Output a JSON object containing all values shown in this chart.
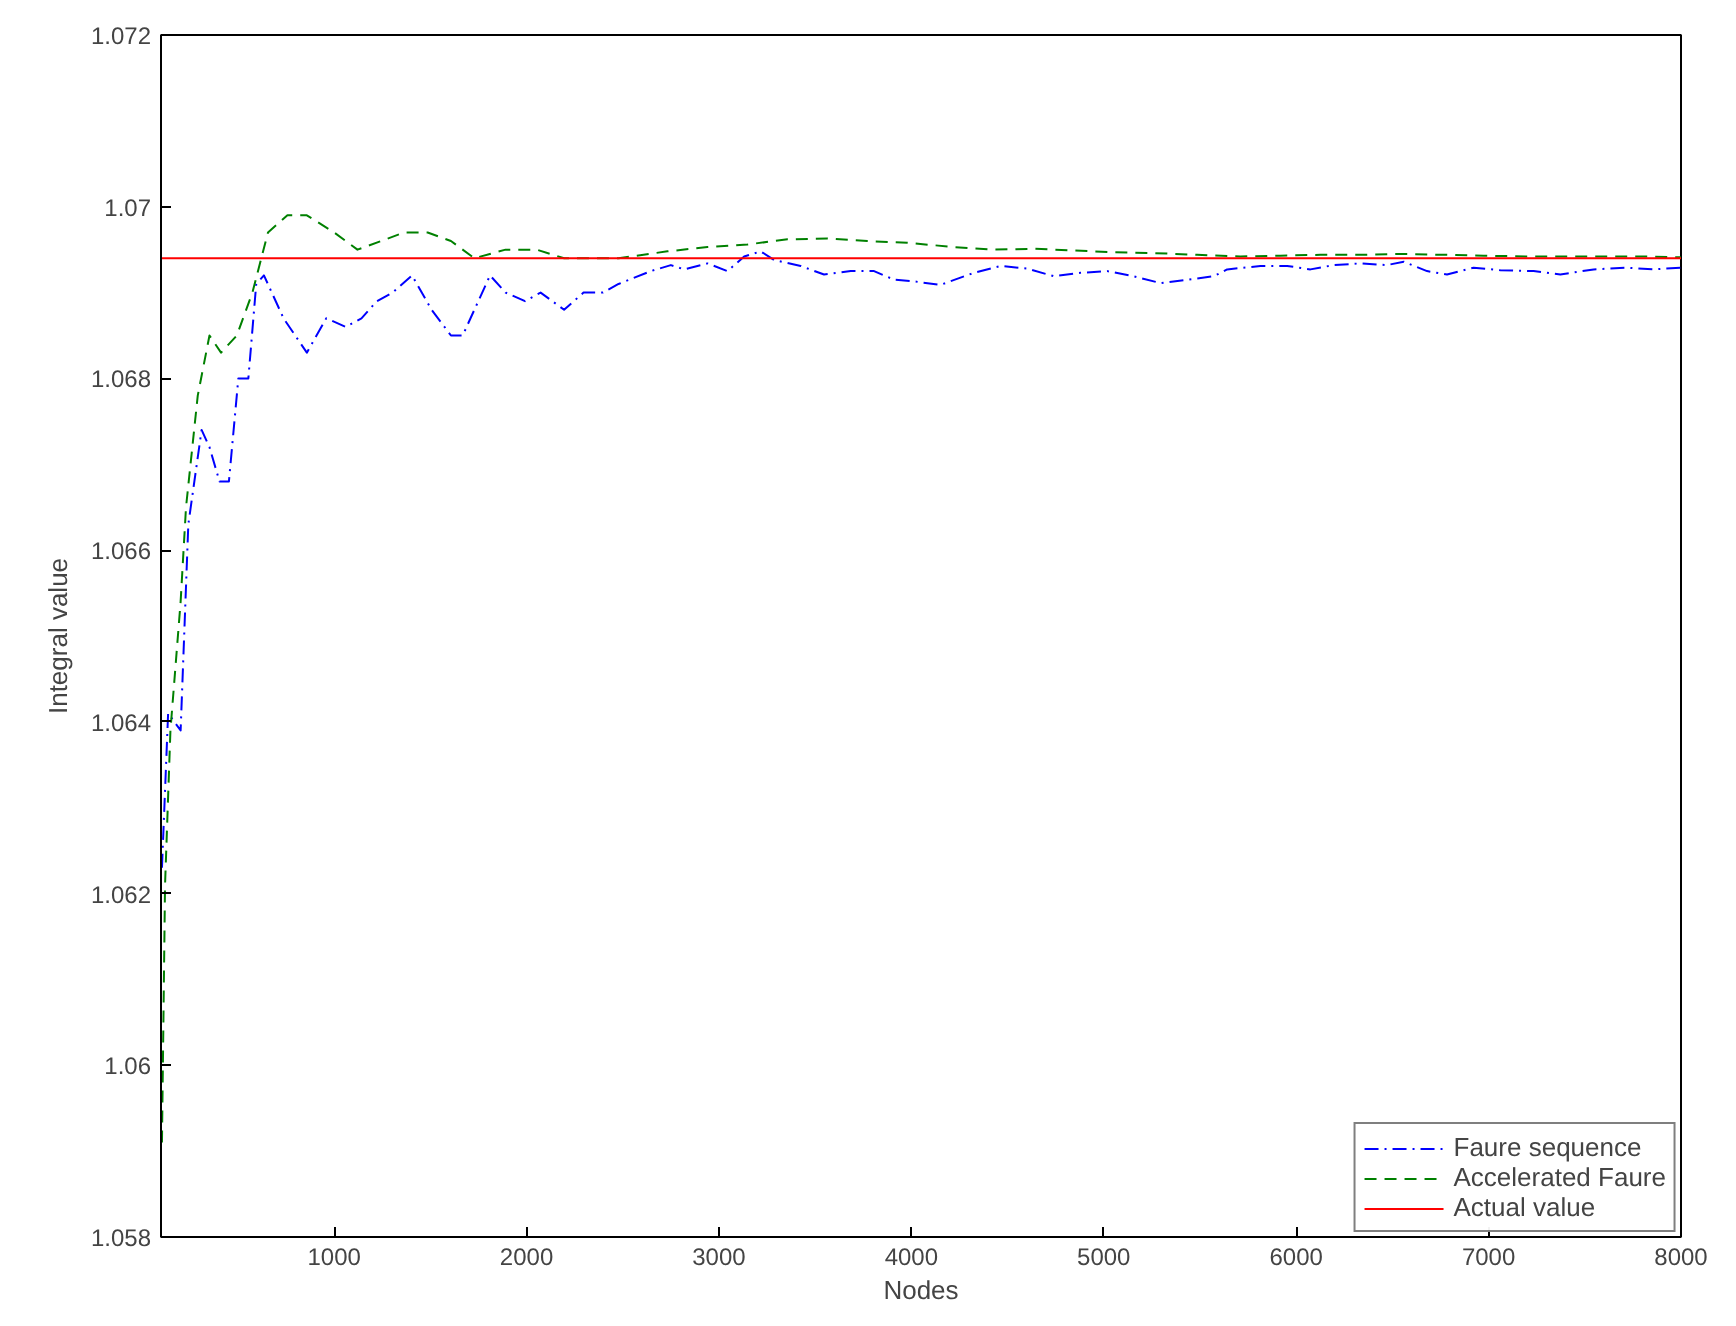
{
  "chart_data": {
    "type": "line",
    "xlabel": "Nodes",
    "ylabel": "Integral value",
    "xlim": [
      100,
      8000
    ],
    "ylim": [
      1.058,
      1.072
    ],
    "xticks": [
      1000,
      2000,
      3000,
      4000,
      5000,
      6000,
      7000,
      8000
    ],
    "yticks": [
      1.058,
      1.06,
      1.062,
      1.064,
      1.066,
      1.068,
      1.07,
      1.072
    ],
    "grid": false,
    "legend": "bottom right",
    "marker": "none",
    "series": [
      {
        "name": "Faure sequence",
        "color": "#0000ff",
        "line_style": "dashdot",
        "x": [
          105,
          137,
          202,
          242,
          311,
          352,
          404,
          453,
          502,
          554,
          595,
          635,
          737,
          858,
          959,
          1061,
          1142,
          1222,
          1304,
          1405,
          1506,
          1607,
          1668,
          1810,
          1891,
          1992,
          2073,
          2195,
          2296,
          2397,
          2478,
          2646,
          2750,
          2819,
          2940,
          3044,
          3131,
          3217,
          3286,
          3425,
          3546,
          3685,
          3806,
          3910,
          4014,
          4152,
          4325,
          4464,
          4602,
          4741,
          4879,
          5018,
          5156,
          5295,
          5433,
          5572,
          5641,
          5814,
          5953,
          6074,
          6195,
          6334,
          6472,
          6559,
          6680,
          6784,
          6922,
          7061,
          7234,
          7373,
          7546,
          7719,
          7857,
          8000
        ],
        "values": [
          1.0623,
          1.0641,
          1.0639,
          1.0663,
          1.0674,
          1.0672,
          1.0668,
          1.0668,
          1.068,
          1.068,
          1.0691,
          1.0692,
          1.0687,
          1.0683,
          1.0687,
          1.0686,
          1.0687,
          1.0689,
          1.069,
          1.0692,
          1.0688,
          1.0685,
          1.0685,
          1.0692,
          1.069,
          1.0689,
          1.069,
          1.0688,
          1.069,
          1.069,
          1.0691,
          1.06925,
          1.06932,
          1.06927,
          1.06934,
          1.06925,
          1.06942,
          1.06948,
          1.06938,
          1.06931,
          1.06921,
          1.06925,
          1.06925,
          1.06915,
          1.06913,
          1.06909,
          1.06923,
          1.06931,
          1.06928,
          1.06919,
          1.06923,
          1.06925,
          1.06919,
          1.06911,
          1.06915,
          1.06919,
          1.06927,
          1.06931,
          1.06931,
          1.06927,
          1.06932,
          1.06934,
          1.06932,
          1.06936,
          1.06925,
          1.06921,
          1.06929,
          1.06926,
          1.06925,
          1.06921,
          1.06927,
          1.06929,
          1.06927,
          1.06929
        ]
      },
      {
        "name": "Accelerated Faure",
        "color": "#008000",
        "line_style": "dashed",
        "x": [
          105,
          121,
          149,
          202,
          230,
          291,
          352,
          412,
          494,
          575,
          656,
          757,
          858,
          1000,
          1121,
          1243,
          1364,
          1486,
          1607,
          1729,
          1891,
          2053,
          2195,
          2478,
          2732,
          2940,
          3148,
          3356,
          3563,
          3771,
          3979,
          4221,
          4429,
          4637,
          4845,
          5053,
          5260,
          5485,
          5710,
          5918,
          6126,
          6334,
          6541,
          6767,
          6974,
          7200,
          7407,
          7615,
          7823,
          8000
        ],
        "values": [
          1.0591,
          1.0621,
          1.0639,
          1.0654,
          1.0665,
          1.0678,
          1.0685,
          1.0683,
          1.0685,
          1.069,
          1.0697,
          1.0699,
          1.0699,
          1.0697,
          1.0695,
          1.0696,
          1.0697,
          1.0697,
          1.0696,
          1.0694,
          1.0695,
          1.0695,
          1.0694,
          1.0694,
          1.06948,
          1.06953,
          1.06956,
          1.06962,
          1.06963,
          1.0696,
          1.06958,
          1.06953,
          1.0695,
          1.06951,
          1.06949,
          1.06947,
          1.06946,
          1.06944,
          1.06942,
          1.06943,
          1.06944,
          1.06944,
          1.06945,
          1.06944,
          1.06943,
          1.06942,
          1.06942,
          1.06942,
          1.06942,
          1.06941
        ]
      },
      {
        "name": "Actual value",
        "color": "#ff0000",
        "line_style": "solid",
        "x": [
          100,
          8000
        ],
        "values": [
          1.0694,
          1.0694
        ]
      }
    ]
  }
}
